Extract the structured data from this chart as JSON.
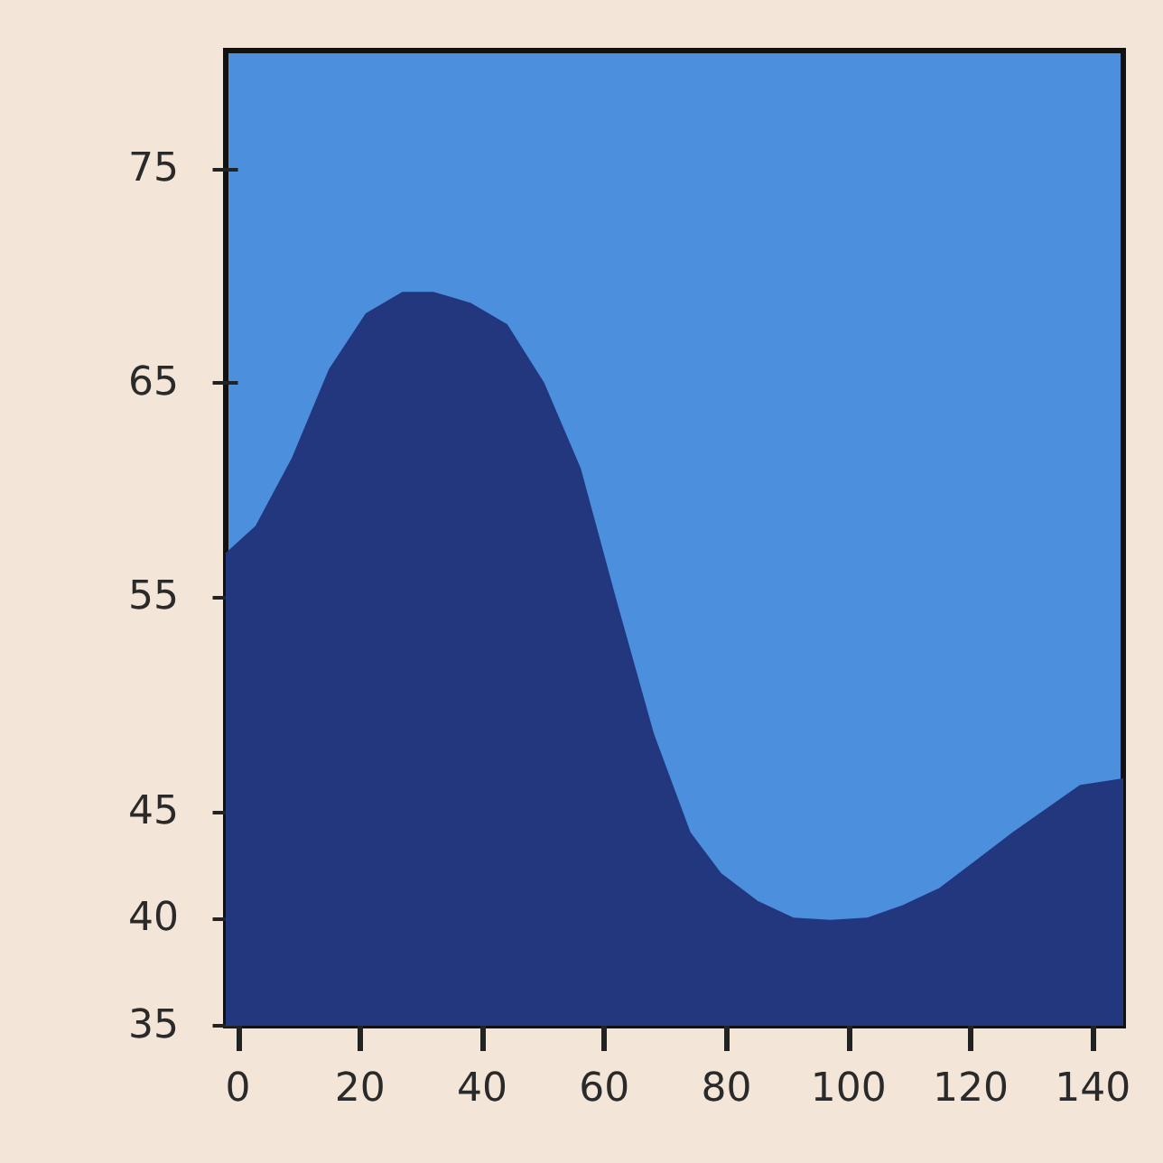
{
  "chart_data": {
    "type": "area",
    "x": [
      -2,
      3,
      9,
      15,
      21,
      27,
      32,
      38,
      44,
      50,
      56,
      62,
      68,
      74,
      79,
      85,
      91,
      97,
      103,
      109,
      115,
      121,
      127,
      132,
      138,
      145
    ],
    "values": [
      57,
      58.3,
      61.5,
      65.6,
      68.2,
      69.2,
      69.2,
      68.7,
      67.7,
      65,
      61,
      54.7,
      48.6,
      44,
      42.1,
      40.8,
      40,
      39.9,
      40,
      40.6,
      41.4,
      42.7,
      44,
      45,
      46.2,
      46.5
    ],
    "color": "#23377f",
    "xlim": [
      -2,
      145
    ],
    "xticks": [
      0,
      20,
      40,
      60,
      80,
      100,
      120,
      140
    ],
    "ylim": [
      35,
      80.5
    ],
    "yticks": [
      35,
      40,
      45,
      55,
      65,
      75
    ]
  }
}
